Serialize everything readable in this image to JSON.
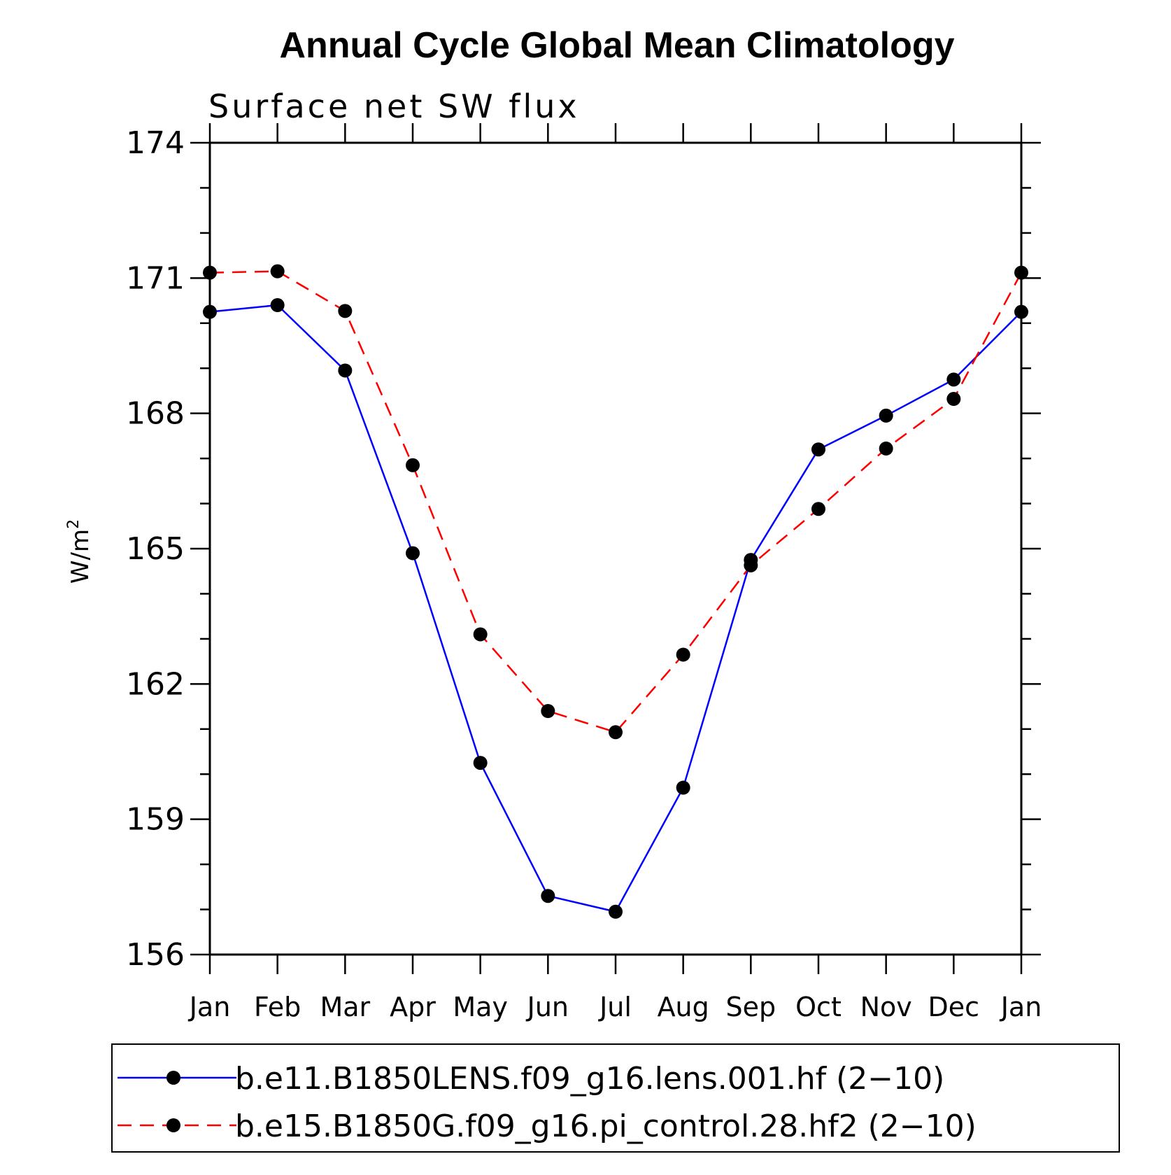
{
  "chart_data": {
    "type": "line",
    "title": "Annual Cycle Global Mean Climatology",
    "subtitle": "Surface net SW flux",
    "ylabel_main": "W/m",
    "ylabel_sup": "2",
    "xlabel": "",
    "categories": [
      "Jan",
      "Feb",
      "Mar",
      "Apr",
      "May",
      "Jun",
      "Jul",
      "Aug",
      "Sep",
      "Oct",
      "Nov",
      "Dec",
      "Jan"
    ],
    "ylim": [
      156,
      174
    ],
    "yticks": [
      "174",
      "171",
      "168",
      "165",
      "162",
      "159",
      "156"
    ],
    "grid": false,
    "legend_position": "bottom",
    "series": [
      {
        "name": "b.e11.B1850LENS.f09_g16.lens.001.hf (2−10)",
        "color": "#0000ff",
        "dash": "solid",
        "values": [
          170.25,
          170.4,
          168.95,
          164.9,
          160.25,
          157.3,
          156.95,
          159.7,
          164.75,
          167.2,
          167.95,
          168.75,
          170.25
        ]
      },
      {
        "name": "b.e15.B1850G.f09_g16.pi_control.28.hf2 (2−10)",
        "color": "#ff0000",
        "dash": "dashed",
        "values": [
          171.12,
          171.15,
          170.27,
          166.85,
          163.1,
          161.4,
          160.93,
          162.65,
          164.63,
          165.88,
          167.22,
          168.32,
          171.12
        ]
      }
    ]
  }
}
